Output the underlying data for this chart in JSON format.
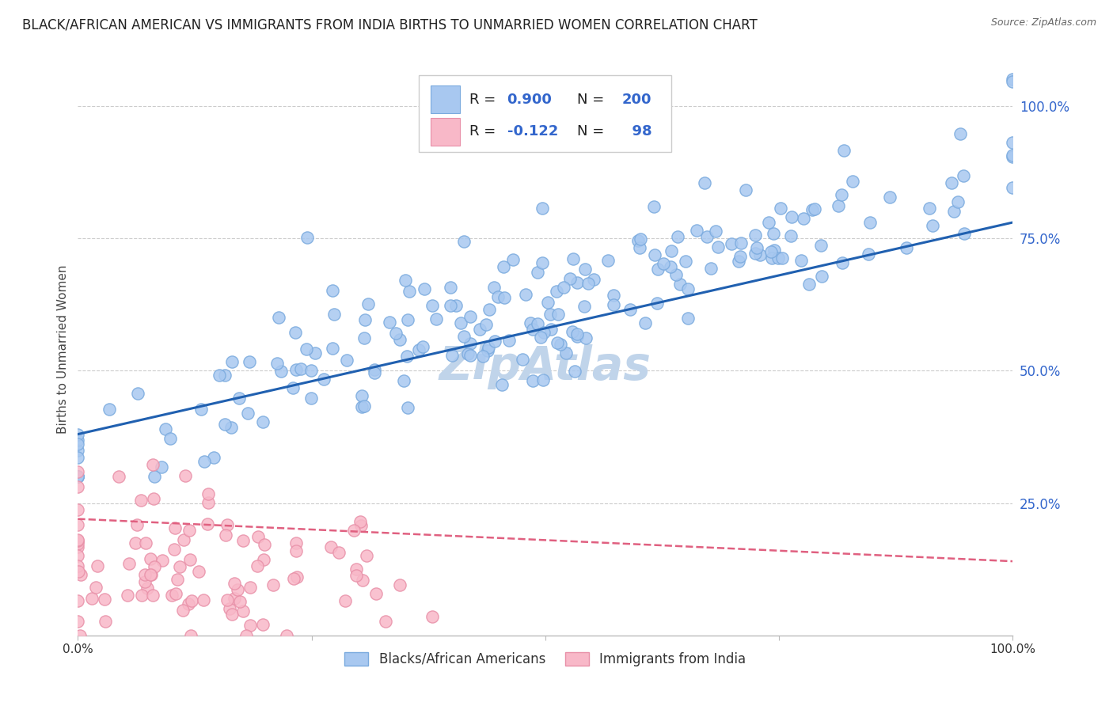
{
  "title": "BLACK/AFRICAN AMERICAN VS IMMIGRANTS FROM INDIA BIRTHS TO UNMARRIED WOMEN CORRELATION CHART",
  "source": "Source: ZipAtlas.com",
  "ylabel": "Births to Unmarried Women",
  "watermark": "ZipAtlas",
  "blue_R": 0.9,
  "blue_N": 200,
  "pink_R": -0.122,
  "pink_N": 98,
  "blue_scatter_color": "#a8c8f0",
  "blue_scatter_edge": "#7aaade",
  "pink_scatter_color": "#f8b8c8",
  "pink_scatter_edge": "#e890a8",
  "blue_line_color": "#2060b0",
  "pink_line_color": "#e06080",
  "legend_label_blue": "Blacks/African Americans",
  "legend_label_pink": "Immigrants from India",
  "ytick_labels": [
    "25.0%",
    "50.0%",
    "75.0%",
    "100.0%"
  ],
  "ytick_values": [
    0.25,
    0.5,
    0.75,
    1.0
  ],
  "background_color": "#ffffff",
  "grid_color": "#cccccc",
  "title_fontsize": 12,
  "axis_fontsize": 11,
  "legend_fontsize": 13,
  "watermark_color": "#c0d4ea",
  "watermark_fontsize": 42,
  "blue_color_leg": "#3366cc",
  "seed": 42
}
